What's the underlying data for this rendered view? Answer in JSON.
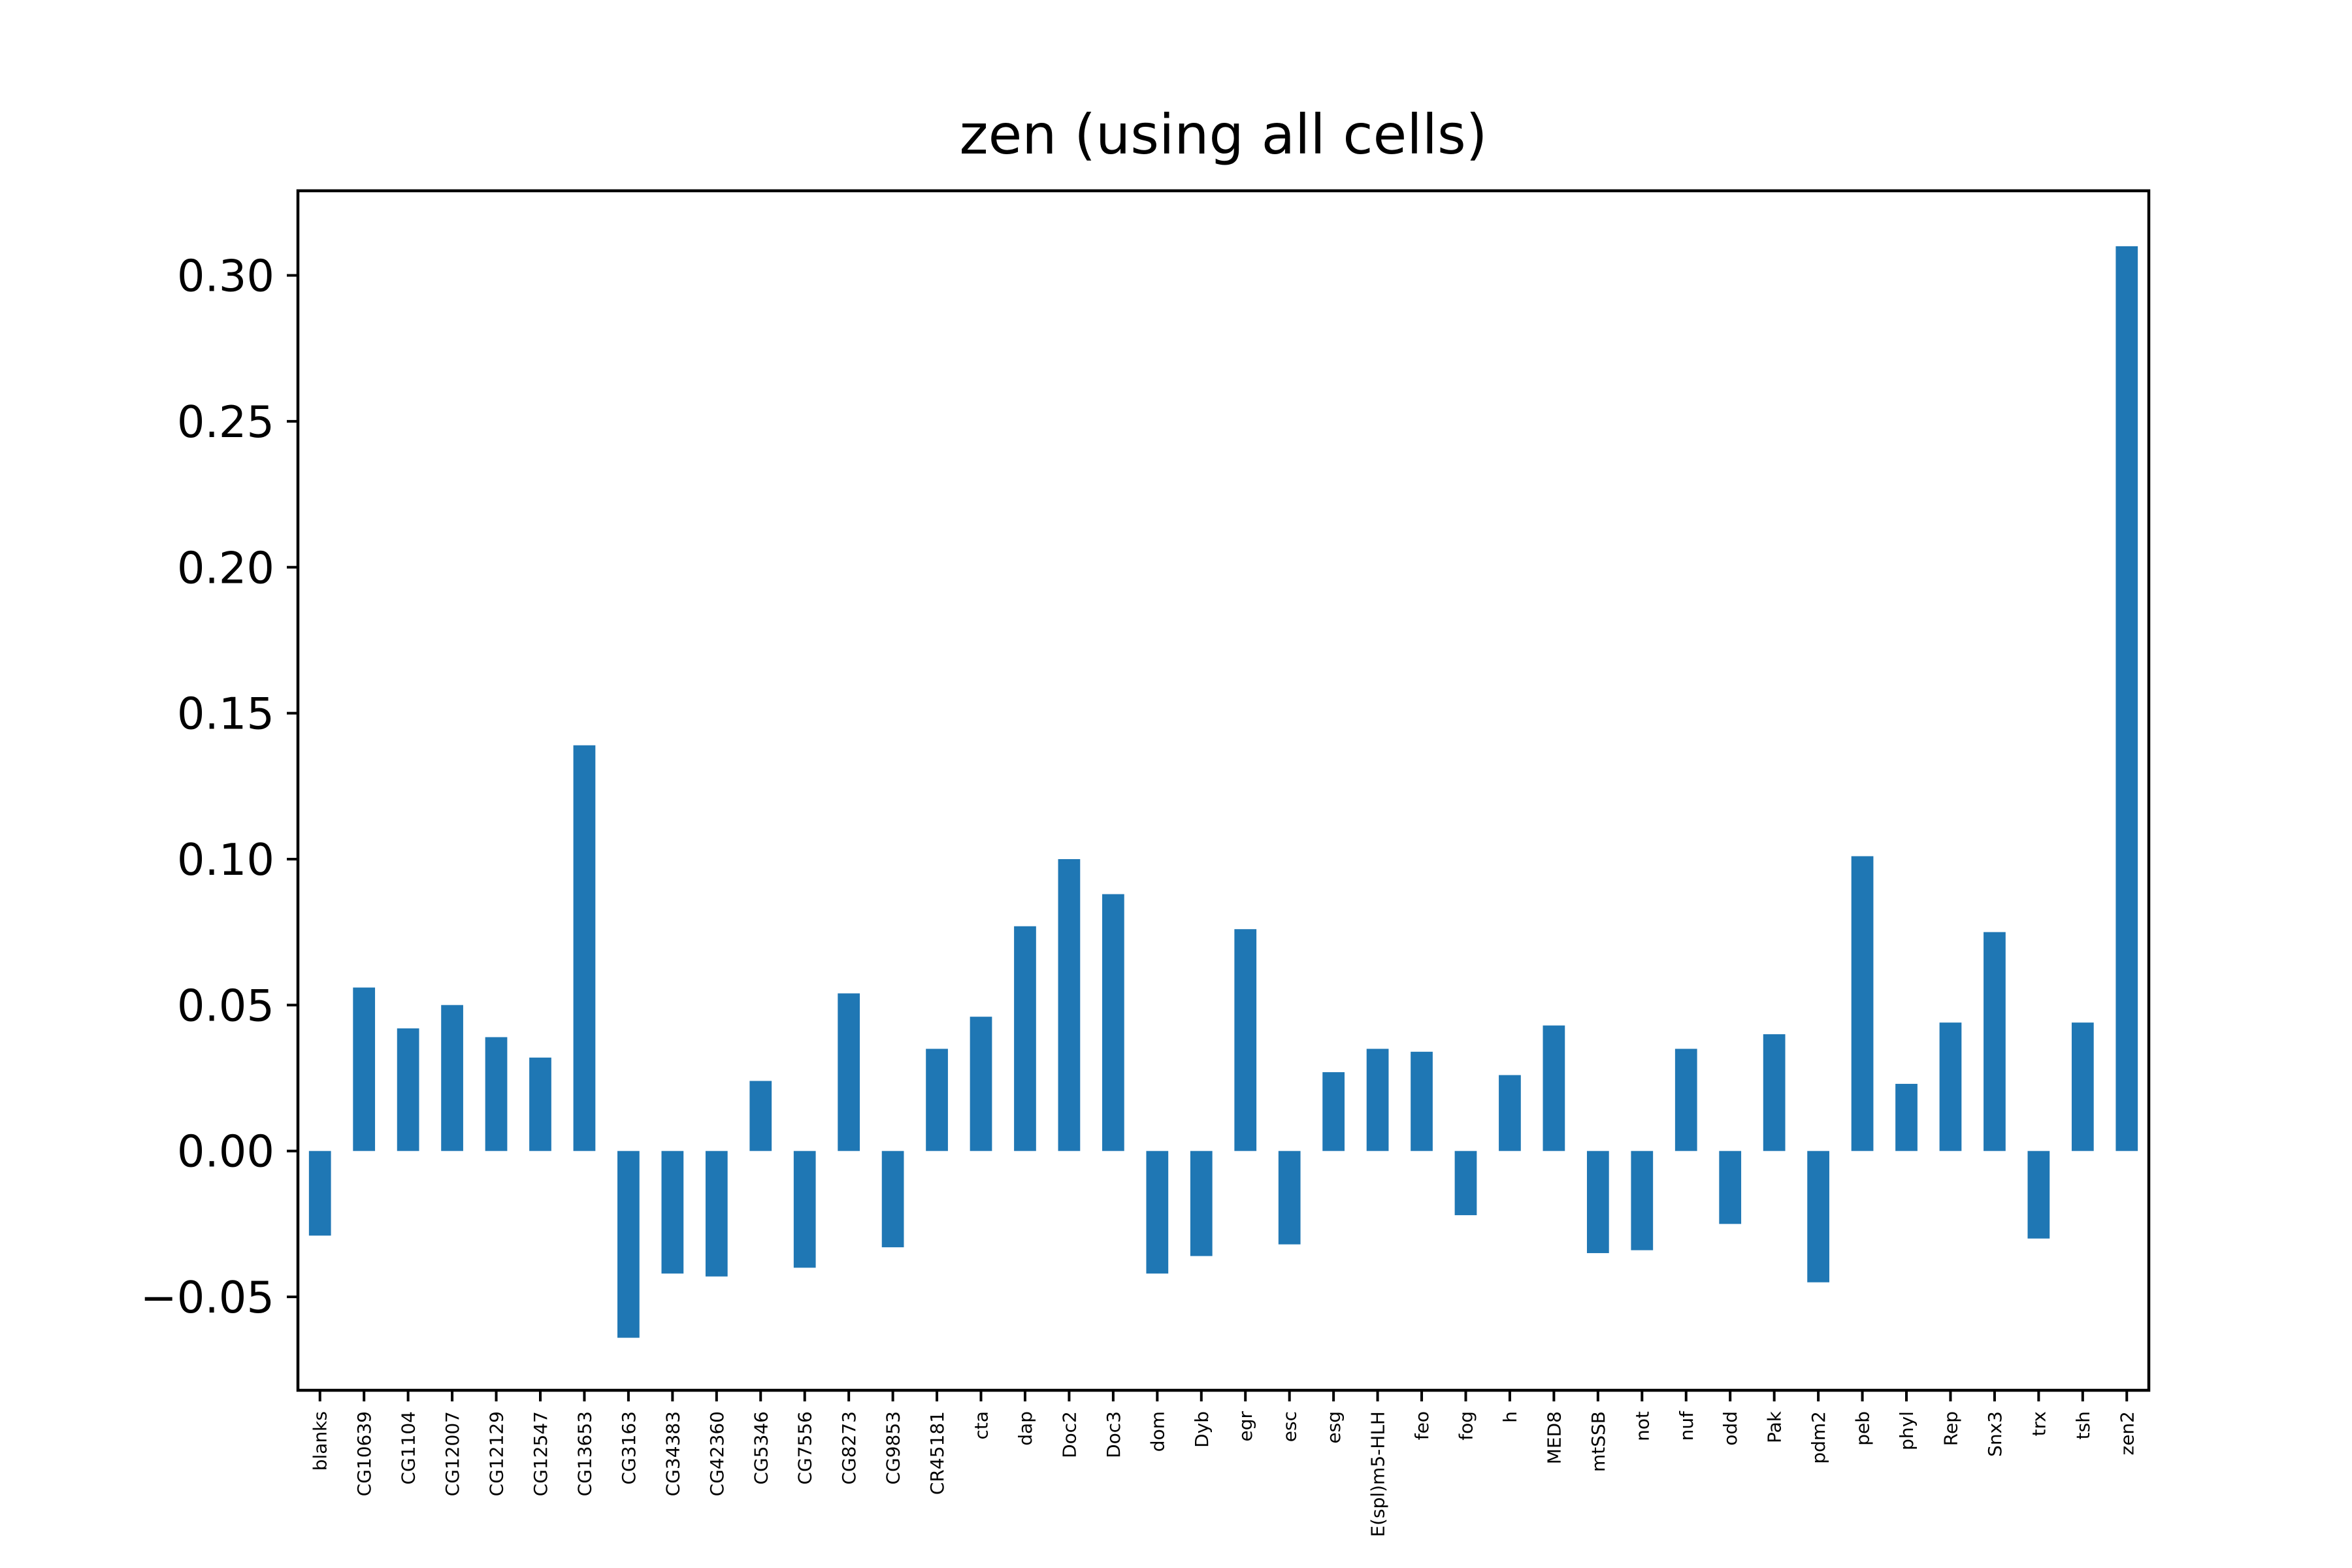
{
  "chart_data": {
    "type": "bar",
    "title": "zen (using all cells)",
    "xlabel": "",
    "ylabel": "",
    "ylim": [
      -0.082,
      0.329
    ],
    "yticks": [
      -0.05,
      0.0,
      0.05,
      0.1,
      0.15,
      0.2,
      0.25,
      0.3
    ],
    "ytick_labels": [
      "−0.05",
      "0.00",
      "0.05",
      "0.10",
      "0.15",
      "0.20",
      "0.25",
      "0.30"
    ],
    "grid": false,
    "bar_color": "#1f77b4",
    "categories": [
      "blanks",
      "CG10639",
      "CG1104",
      "CG12007",
      "CG12129",
      "CG12547",
      "CG13653",
      "CG3163",
      "CG34383",
      "CG42360",
      "CG5346",
      "CG7556",
      "CG8273",
      "CG9853",
      "CR45181",
      "cta",
      "dap",
      "Doc2",
      "Doc3",
      "dom",
      "Dyb",
      "egr",
      "esc",
      "esg",
      "E(spl)m5-HLH",
      "feo",
      "fog",
      "h",
      "MED8",
      "mtSSB",
      "not",
      "nuf",
      "odd",
      "Pak",
      "pdm2",
      "peb",
      "phyl",
      "Rep",
      "Snx3",
      "trx",
      "tsh",
      "zen2"
    ],
    "values": [
      -0.029,
      0.056,
      0.042,
      0.05,
      0.039,
      0.032,
      0.139,
      -0.064,
      -0.042,
      -0.043,
      0.024,
      -0.04,
      0.054,
      -0.033,
      0.035,
      0.046,
      0.077,
      0.1,
      0.088,
      -0.042,
      -0.036,
      0.076,
      -0.032,
      0.027,
      0.035,
      0.034,
      -0.022,
      0.026,
      0.043,
      -0.035,
      -0.034,
      0.035,
      -0.025,
      0.04,
      -0.045,
      0.101,
      0.023,
      0.044,
      0.075,
      -0.03,
      0.044,
      0.31
    ]
  }
}
